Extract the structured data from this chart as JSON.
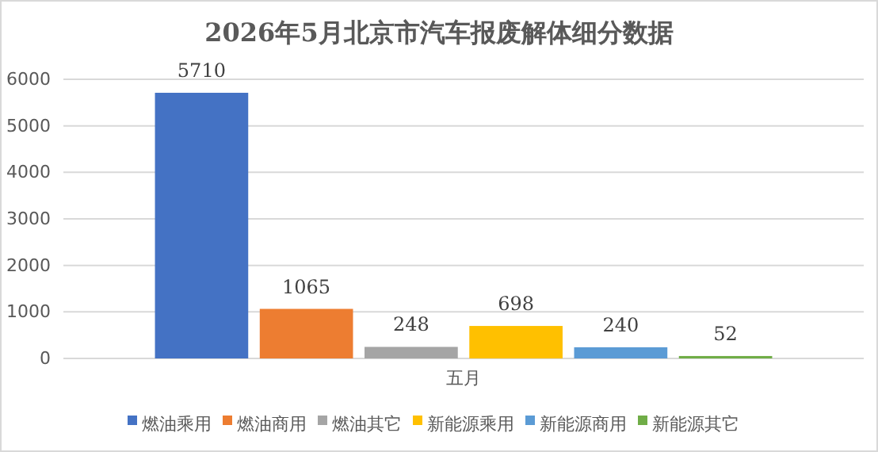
{
  "chart_data": {
    "type": "bar",
    "title": "2026年5月北京市汽车报废解体细分数据",
    "categories": [
      "五月"
    ],
    "series": [
      {
        "name": "燃油乘用",
        "color": "#4472c4",
        "values": [
          5710
        ]
      },
      {
        "name": "燃油商用",
        "color": "#ed7d31",
        "values": [
          1065
        ]
      },
      {
        "name": "燃油其它",
        "color": "#a5a5a5",
        "values": [
          248
        ]
      },
      {
        "name": "新能源乘用",
        "color": "#ffc000",
        "values": [
          698
        ]
      },
      {
        "name": "新能源商用",
        "color": "#5b9bd5",
        "values": [
          240
        ]
      },
      {
        "name": "新能源其它",
        "color": "#70ad47",
        "values": [
          52
        ]
      }
    ],
    "ylim": [
      0,
      6000
    ],
    "yticks": [
      0,
      1000,
      2000,
      3000,
      4000,
      5000,
      6000
    ],
    "grid": "y",
    "legend": "bottom",
    "data_labels": true
  }
}
